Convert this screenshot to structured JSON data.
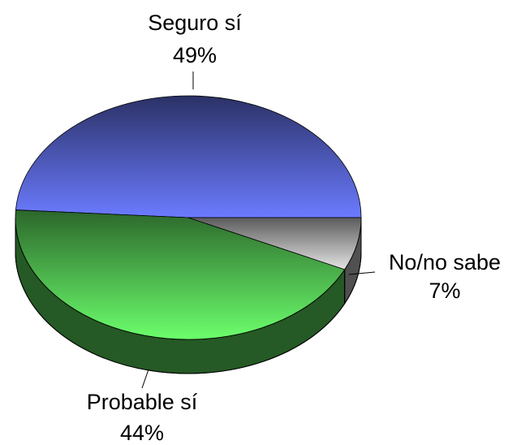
{
  "chart_data": {
    "type": "pie",
    "categories": [
      "Seguro sí",
      "Probable sí",
      "No/no sabe"
    ],
    "values": [
      49,
      44,
      7
    ],
    "value_labels": [
      "49%",
      "44%",
      "7%"
    ],
    "colors": [
      "#6b7bff",
      "#6cff6c",
      "#e4e4e4"
    ]
  }
}
